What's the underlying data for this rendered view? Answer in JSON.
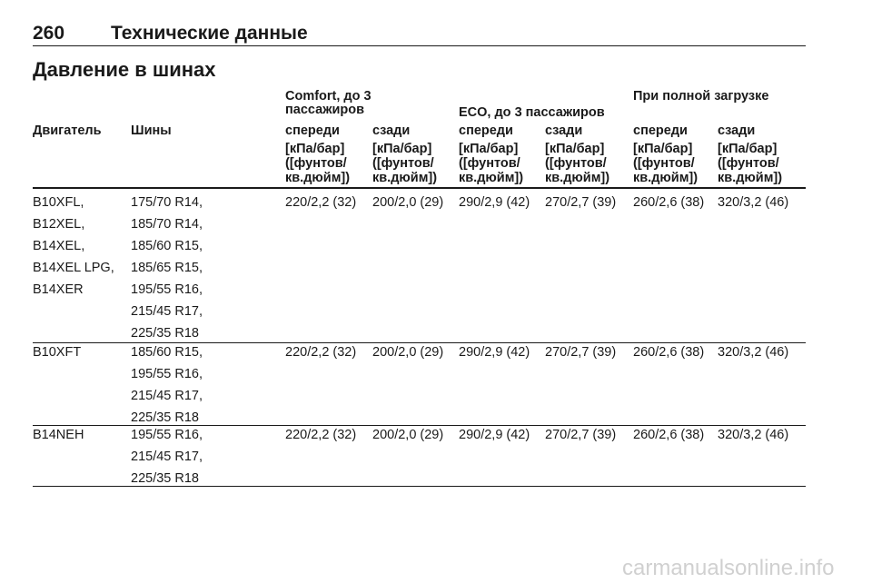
{
  "header": {
    "page_number": "260",
    "section": "Технические данные"
  },
  "title": "Давление в шинах",
  "table": {
    "groups": {
      "comfort_line1": "Comfort, до 3",
      "comfort_line2": "пассажиров",
      "eco": "ECO, до 3 пассажиров",
      "full": "При полной загрузке"
    },
    "col_engine": "Двигатель",
    "col_tires": "Шины",
    "col_front": "спереди",
    "col_rear": "сзади",
    "unit_line1": "[кПа/бар]",
    "unit_line2": "([фунтов/",
    "unit_line3": "кв.дюйм])",
    "rows": [
      {
        "engines": [
          "B10XFL,",
          "B12XEL,",
          "B14XEL,",
          "B14XEL LPG,",
          "B14XER"
        ],
        "tires": [
          "175/70 R14,",
          "185/70 R14,",
          "185/60 R15,",
          "185/65 R15,",
          "195/55 R16,",
          "215/45 R17,",
          "225/35 R18"
        ],
        "values": [
          "220/2,2 (32)",
          "200/2,0 (29)",
          "290/2,9 (42)",
          "270/2,7 (39)",
          "260/2,6 (38)",
          "320/3,2 (46)"
        ]
      },
      {
        "engines": [
          "B10XFT"
        ],
        "tires": [
          "185/60 R15,",
          "195/55 R16,",
          "215/45 R17,",
          "225/35 R18"
        ],
        "values": [
          "220/2,2 (32)",
          "200/2,0 (29)",
          "290/2,9 (42)",
          "270/2,7 (39)",
          "260/2,6 (38)",
          "320/3,2 (46)"
        ]
      },
      {
        "engines": [
          "B14NEH"
        ],
        "tires": [
          "195/55 R16,",
          "215/45 R17,",
          "225/35 R18"
        ],
        "values": [
          "220/2,2 (32)",
          "200/2,0 (29)",
          "290/2,9 (42)",
          "270/2,7 (39)",
          "260/2,6 (38)",
          "320/3,2 (46)"
        ]
      }
    ]
  },
  "watermark": "carmanualsonline.info"
}
